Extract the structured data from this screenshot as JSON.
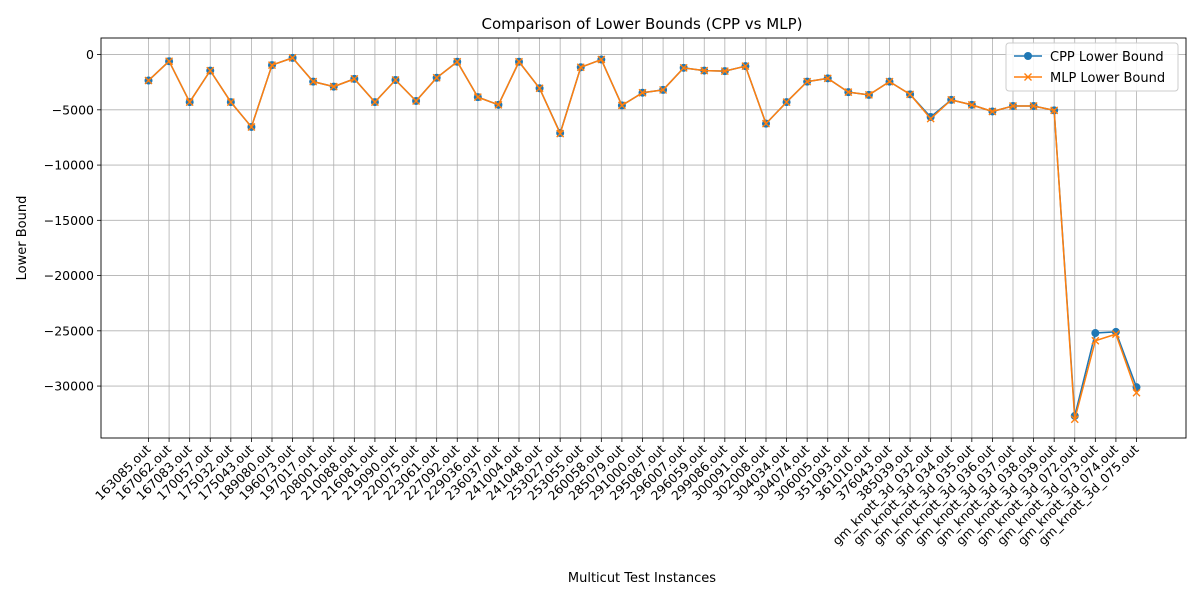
{
  "chart_data": {
    "type": "line",
    "title": "Comparison of Lower Bounds (CPP vs MLP)",
    "xlabel": "Multicut Test Instances",
    "ylabel": "Lower Bound",
    "ylim": [
      -34700,
      1500
    ],
    "yticks": [
      0,
      -5000,
      -10000,
      -15000,
      -20000,
      -25000,
      -30000
    ],
    "ytick_labels": [
      "0",
      "−5000",
      "−10000",
      "−15000",
      "−20000",
      "−25000",
      "−30000"
    ],
    "grid": true,
    "legend_position": "top-right",
    "categories": [
      "163085.out",
      "167062.out",
      "167083.out",
      "170057.out",
      "175032.out",
      "175043.out",
      "189080.out",
      "196073.out",
      "197017.out",
      "208001.out",
      "210088.out",
      "216081.out",
      "219090.out",
      "220075.out",
      "223061.out",
      "227092.out",
      "229036.out",
      "236037.out",
      "241004.out",
      "241048.out",
      "253027.out",
      "253055.out",
      "260058.out",
      "285079.out",
      "291000.out",
      "295087.out",
      "296007.out",
      "296059.out",
      "299086.out",
      "300091.out",
      "302008.out",
      "304034.out",
      "304074.out",
      "306005.out",
      "351093.out",
      "361010.out",
      "376043.out",
      "385039.out",
      "gm_knott_3d_032.out",
      "gm_knott_3d_034.out",
      "gm_knott_3d_035.out",
      "gm_knott_3d_036.out",
      "gm_knott_3d_037.out",
      "gm_knott_3d_038.out",
      "gm_knott_3d_039.out",
      "gm_knott_3d_072.out",
      "gm_knott_3d_073.out",
      "gm_knott_3d_074.out",
      "gm_knott_3d_075.out"
    ],
    "series": [
      {
        "name": "CPP Lower Bound",
        "color": "#1f77b4",
        "marker": "circle",
        "values": [
          -2350,
          -600,
          -4300,
          -1450,
          -4300,
          -6550,
          -950,
          -300,
          -2450,
          -2900,
          -2200,
          -4300,
          -2300,
          -4200,
          -2100,
          -650,
          -3850,
          -4550,
          -650,
          -3050,
          -7100,
          -1150,
          -450,
          -4600,
          -3450,
          -3200,
          -1200,
          -1450,
          -1500,
          -1050,
          -6250,
          -4300,
          -2450,
          -2150,
          -3400,
          -3650,
          -2450,
          -3600,
          -5650,
          -4100,
          -4550,
          -5150,
          -4650,
          -4650,
          -5050,
          -32700,
          -25200,
          -25100,
          -30100
        ]
      },
      {
        "name": "MLP Lower Bound",
        "color": "#ff7f0e",
        "marker": "x",
        "values": [
          -2350,
          -600,
          -4300,
          -1450,
          -4300,
          -6550,
          -950,
          -300,
          -2450,
          -2900,
          -2200,
          -4300,
          -2300,
          -4200,
          -2100,
          -650,
          -3850,
          -4550,
          -650,
          -3050,
          -7150,
          -1150,
          -450,
          -4600,
          -3450,
          -3200,
          -1200,
          -1450,
          -1500,
          -1050,
          -6250,
          -4300,
          -2450,
          -2150,
          -3400,
          -3650,
          -2450,
          -3600,
          -5800,
          -4100,
          -4550,
          -5150,
          -4650,
          -4650,
          -5050,
          -33000,
          -25900,
          -25300,
          -30600
        ]
      }
    ]
  }
}
